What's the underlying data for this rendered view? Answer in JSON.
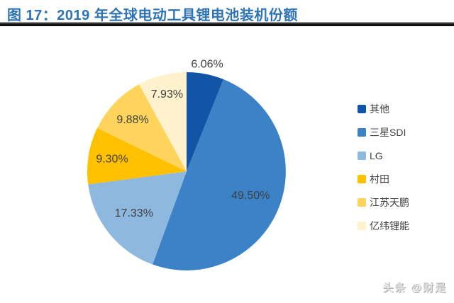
{
  "figure": {
    "title": "图 17：2019 年全球电动工具锂电池装机份额",
    "title_color": "#2E74B5"
  },
  "chart_data": {
    "type": "pie",
    "title": "2019 年全球电动工具锂电池装机份额",
    "categories": [
      "其他",
      "三星SDI",
      "LG",
      "村田",
      "江苏天鹏",
      "亿纬锂能"
    ],
    "values": [
      6.06,
      49.5,
      17.33,
      9.3,
      9.88,
      7.93
    ],
    "data_labels": [
      "6.06%",
      "49.50%",
      "17.33%",
      "9.30%",
      "9.88%",
      "7.93%"
    ],
    "colors": [
      "#1254A6",
      "#3B82C6",
      "#8FB8DF",
      "#FFC000",
      "#FFD45C",
      "#FFF2CC"
    ],
    "start_angle_deg": 0,
    "direction": "clockwise",
    "first_slice_at": "12-oclock",
    "legend_position": "right",
    "label_color": "#3F3F3F",
    "label_radius_factors": [
      1.1,
      0.69,
      0.68,
      0.76,
      0.75,
      0.8
    ]
  },
  "watermark": {
    "text": "头条 @财是"
  }
}
